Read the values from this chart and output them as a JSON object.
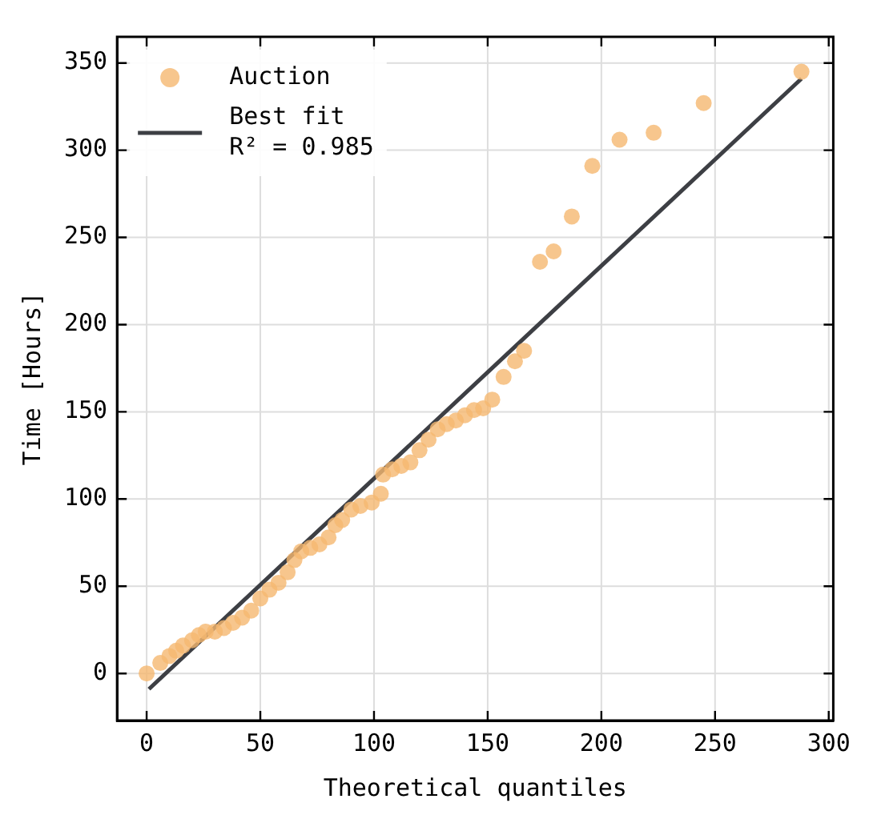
{
  "chart_data": {
    "type": "scatter",
    "xlabel": "Theoretical quantiles",
    "ylabel": "Time [Hours]",
    "xlim": [
      -13,
      302
    ],
    "ylim": [
      -27,
      365
    ],
    "xticks": [
      0,
      50,
      100,
      150,
      200,
      250,
      300
    ],
    "yticks": [
      0,
      50,
      100,
      150,
      200,
      250,
      300,
      350
    ],
    "grid": true,
    "legend": "top left",
    "marker": "circle",
    "series": [
      {
        "name": "Auction",
        "color": "#f5b870",
        "x": [
          0,
          6,
          10,
          13,
          16,
          20,
          23,
          26,
          30,
          34,
          38,
          42,
          46,
          50,
          54,
          58,
          62,
          65,
          68,
          72,
          76,
          80,
          83,
          86,
          90,
          94,
          99,
          103,
          104,
          108,
          112,
          116,
          120,
          124,
          128,
          132,
          136,
          140,
          144,
          148,
          152,
          157,
          162,
          166,
          173,
          179,
          187,
          196,
          208,
          223,
          245,
          288
        ],
        "values": [
          0,
          6,
          10,
          13,
          16,
          19,
          22,
          24,
          24,
          26,
          29,
          32,
          36,
          43,
          48,
          52,
          58,
          65,
          70,
          72,
          74,
          78,
          85,
          88,
          94,
          96,
          98,
          103,
          114,
          117,
          119,
          121,
          128,
          134,
          140,
          143,
          145,
          148,
          151,
          152,
          157,
          170,
          179,
          185,
          236,
          242,
          262,
          291,
          306,
          310,
          327,
          345
        ]
      },
      {
        "name": "Best fit\nR² = 0.985",
        "type": "line",
        "color": "#3d3f44",
        "line_style": "solid",
        "marker": "none",
        "x": [
          1,
          288
        ],
        "values": [
          -9,
          341
        ]
      }
    ]
  }
}
